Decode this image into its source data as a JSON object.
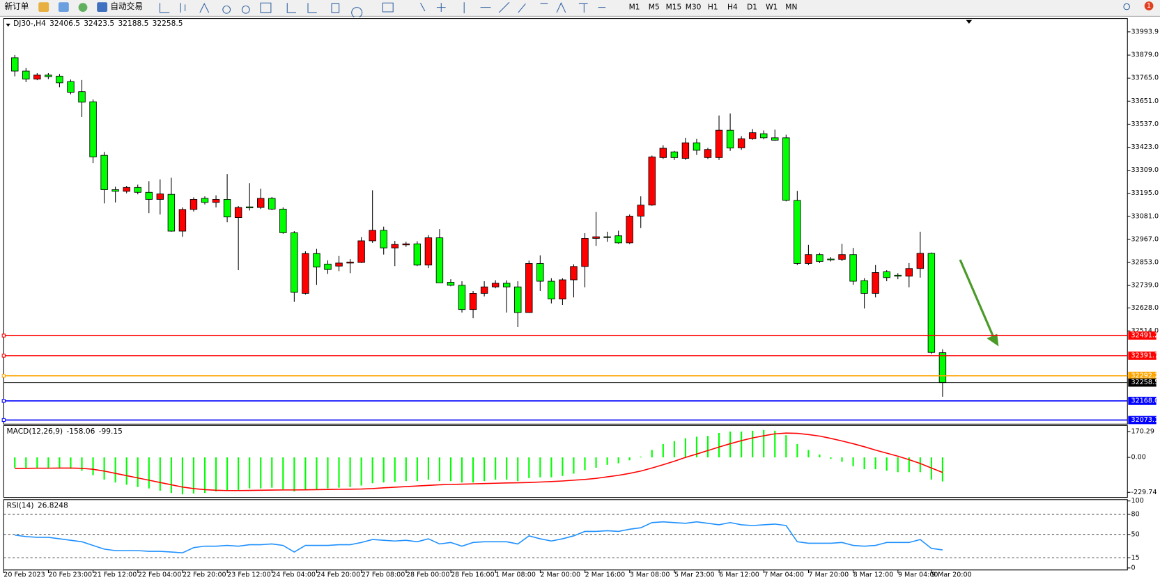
{
  "toolbar": {
    "new_order": "新订单",
    "auto_trading": "自动交易",
    "timeframes": [
      "M1",
      "M5",
      "M15",
      "M30",
      "H1",
      "H4",
      "D1",
      "W1",
      "MN"
    ],
    "alerts_badge": 1
  },
  "chart_data": [
    {
      "type": "candlestick",
      "title": "DJ30-,H4",
      "categories": [
        "20 Feb 2023",
        null,
        null,
        null,
        "20 Feb 23:00",
        null,
        null,
        null,
        "21 Feb 12:00",
        null,
        null,
        null,
        "22 Feb 04:00",
        null,
        null,
        null,
        "22 Feb 20:00",
        null,
        null,
        null,
        "23 Feb 12:00",
        null,
        null,
        null,
        "24 Feb 04:00",
        null,
        null,
        null,
        "24 Feb 20:00",
        null,
        null,
        null,
        "27 Feb 08:00",
        null,
        null,
        null,
        "28 Feb 00:00",
        null,
        null,
        null,
        "28 Feb 16:00",
        null,
        null,
        null,
        "1 Mar 08:00",
        null,
        null,
        null,
        "2 Mar 00:00",
        null,
        null,
        null,
        "2 Mar 16:00",
        null,
        null,
        null,
        "3 Mar 08:00",
        null,
        null,
        null,
        "5 Mar 23:00",
        null,
        null,
        null,
        "6 Mar 12:00",
        null,
        null,
        null,
        "7 Mar 04:00",
        null,
        null,
        null,
        "7 Mar 20:00",
        null,
        null,
        null,
        "8 Mar 12:00",
        null,
        null,
        null,
        "9 Mar 04:00",
        null,
        null,
        "9 Mar 20:00"
      ],
      "open": [
        33866,
        33800,
        33760,
        33780,
        33775,
        33748,
        33698,
        33648,
        33383,
        33213,
        33205,
        33224,
        33200,
        33165,
        33190,
        33008,
        33115,
        33170,
        33150,
        33165,
        33075,
        33128,
        33125,
        33170,
        33117,
        33000,
        32700,
        32897,
        32845,
        32835,
        32850,
        32853,
        32960,
        33012,
        32925,
        32940,
        32945,
        32840,
        32975,
        32755,
        32740,
        32620,
        32700,
        32732,
        32750,
        32732,
        32605,
        32848,
        32760,
        32672,
        32767,
        32833,
        32972,
        32980,
        32985,
        32950,
        33082,
        33137,
        33372,
        33400,
        33368,
        33445,
        33372,
        33372,
        33507,
        33420,
        33465,
        33490,
        33470,
        33470,
        33160,
        32848,
        32892,
        32870,
        32868,
        32892,
        32763,
        32700,
        32807,
        32790,
        32785,
        32823,
        32898,
        32406.5
      ],
      "high": [
        33880,
        33815,
        33790,
        33790,
        33785,
        33758,
        33756,
        33660,
        33400,
        33228,
        33232,
        33238,
        33255,
        33264,
        33272,
        33125,
        33175,
        33180,
        33185,
        33290,
        33132,
        33245,
        33218,
        33177,
        33125,
        33008,
        32908,
        32920,
        32863,
        32885,
        32870,
        32978,
        33210,
        33030,
        32960,
        32955,
        32958,
        32988,
        33018,
        32770,
        32760,
        32712,
        32760,
        32765,
        32765,
        32760,
        32862,
        32888,
        32775,
        32775,
        32844,
        32998,
        33103,
        33005,
        33010,
        33090,
        33180,
        33382,
        33433,
        33405,
        33470,
        33464,
        33420,
        33580,
        33590,
        33478,
        33513,
        33506,
        33510,
        33485,
        33207,
        32940,
        32900,
        32880,
        32945,
        32925,
        32775,
        32840,
        32815,
        32800,
        32850,
        33005,
        32902,
        32423.5
      ],
      "low": [
        33774,
        33745,
        33755,
        33760,
        33720,
        33685,
        33573,
        33345,
        33145,
        33150,
        33195,
        33190,
        33097,
        33090,
        33005,
        32980,
        33105,
        33140,
        33125,
        33052,
        32815,
        33110,
        33117,
        33112,
        32995,
        32658,
        32694,
        32742,
        32796,
        32810,
        32800,
        32850,
        32950,
        32892,
        32835,
        32930,
        32835,
        32825,
        32752,
        32735,
        32605,
        32577,
        32685,
        32725,
        32605,
        32533,
        32603,
        32712,
        32650,
        32643,
        32680,
        32730,
        32935,
        32955,
        32945,
        32944,
        33023,
        33133,
        33365,
        33360,
        33360,
        33385,
        33365,
        33360,
        33405,
        33410,
        33460,
        33462,
        33455,
        33155,
        32840,
        32840,
        32850,
        32858,
        32860,
        32742,
        32625,
        32680,
        32760,
        32770,
        32730,
        32778,
        32400,
        32188.5
      ],
      "close": [
        33800,
        33760,
        33780,
        33772,
        33742,
        33695,
        33646,
        33375,
        33213,
        33205,
        33224,
        33200,
        33165,
        33192,
        33008,
        33115,
        33165,
        33150,
        33165,
        33078,
        33125,
        33123,
        33170,
        33117,
        33000,
        32705,
        32897,
        32830,
        32818,
        32850,
        32855,
        32960,
        33012,
        32925,
        32942,
        32945,
        32840,
        32975,
        32752,
        32740,
        32620,
        32700,
        32732,
        32750,
        32732,
        32605,
        32848,
        32760,
        32672,
        32767,
        32833,
        32972,
        32980,
        32978,
        32950,
        33082,
        33137,
        33375,
        33418,
        33372,
        33445,
        33408,
        33412,
        33507,
        33419,
        33465,
        33495,
        33470,
        33458,
        33160,
        32848,
        32892,
        32858,
        32865,
        32892,
        32760,
        32700,
        32803,
        32778,
        32785,
        32823,
        32898,
        32408,
        32258.5
      ],
      "up_color": "#ff0000",
      "down_color": "#00ff00",
      "ylim": [
        32053,
        34060
      ],
      "yticks": [
        33993.9,
        {
          "value": 33879,
          "label": "33879.0"
        },
        {
          "value": 33765,
          "label": "33765.0"
        },
        {
          "value": 33651,
          "label": "33651.0"
        },
        {
          "value": 33537,
          "label": "33537.0"
        },
        {
          "value": 33423,
          "label": "33423.0"
        },
        {
          "value": 33309,
          "label": "33309.0"
        },
        {
          "value": 33195,
          "label": "33195.0"
        },
        {
          "value": 33081,
          "label": "33081.0"
        },
        {
          "value": 32967,
          "label": "32967.0"
        },
        {
          "value": 32853,
          "label": "32853.0"
        },
        {
          "value": 32739,
          "label": "32739.0"
        },
        {
          "value": 32628,
          "label": "32628.0"
        },
        {
          "value": 32514,
          "label": "32514.0"
        }
      ],
      "price_lines": [
        {
          "value": 32491.2,
          "color": "#ff0000"
        },
        {
          "value": 32391.7,
          "color": "#ff0000"
        },
        {
          "value": 32292.2,
          "color": "#ffa500"
        },
        {
          "value": 32168,
          "label": "32168.0",
          "color": "#0000ff"
        },
        {
          "value": 32073.1,
          "color": "#0000ff"
        }
      ],
      "current_price_color": "#000000"
    },
    {
      "type": "macd",
      "title": "MACD(12,26,9)",
      "values": [
        -68,
        -70,
        -72,
        -70,
        -72,
        -75,
        -88,
        -117,
        -146,
        -165,
        -180,
        -195,
        -204,
        -219,
        -234,
        -243,
        -238,
        -234,
        -224,
        -219,
        -214,
        -204,
        -204,
        -199,
        -209,
        -224,
        -214,
        -209,
        -204,
        -199,
        -195,
        -185,
        -170,
        -165,
        -161,
        -156,
        -156,
        -146,
        -156,
        -156,
        -165,
        -165,
        -156,
        -146,
        -146,
        -156,
        -136,
        -131,
        -131,
        -122,
        -107,
        -83,
        -68,
        -49,
        -39,
        -19,
        5,
        49,
        88,
        107,
        126,
        136,
        141,
        161,
        170,
        170,
        175,
        180,
        175,
        146,
        88,
        49,
        19,
        -10,
        -29,
        -58,
        -78,
        -78,
        -88,
        -97,
        -97,
        -97,
        -146,
        -158.06
      ],
      "signal": [
        -73,
        -72,
        -71,
        -71,
        -70,
        -70,
        -72,
        -78,
        -90,
        -105,
        -120,
        -135,
        -150,
        -165,
        -180,
        -195,
        -205,
        -212,
        -216,
        -218,
        -218,
        -217,
        -216,
        -215,
        -214,
        -214,
        -213,
        -212,
        -211,
        -210,
        -209,
        -208,
        -205,
        -200,
        -196,
        -192,
        -188,
        -184,
        -180,
        -178,
        -176,
        -174,
        -172,
        -170,
        -168,
        -167,
        -165,
        -162,
        -159,
        -155,
        -150,
        -145,
        -138,
        -128,
        -118,
        -105,
        -90,
        -70,
        -48,
        -25,
        0,
        22,
        45,
        68,
        90,
        110,
        128,
        142,
        155,
        160,
        158,
        150,
        140,
        125,
        108,
        90,
        70,
        48,
        28,
        8,
        -15,
        -40,
        -70,
        -99.15
      ],
      "color": "#00ff00",
      "signal_color": "#ff0000",
      "ylim": [
        -263,
        209
      ],
      "yticks": [
        170.29,
        {
          "value": 0,
          "label": "0.00"
        },
        -229.74
      ]
    },
    {
      "type": "line",
      "title": "RSI(14)",
      "values": [
        49.0,
        46.8,
        45.7,
        45.7,
        43.5,
        41.3,
        39.1,
        33.6,
        28.1,
        25.9,
        25.9,
        25.9,
        24.8,
        24.8,
        23.7,
        22.6,
        30.3,
        32.5,
        32.5,
        33.6,
        32.5,
        34.7,
        34.7,
        35.8,
        33.6,
        23.7,
        33.6,
        33.6,
        33.6,
        34.7,
        34.7,
        38.0,
        42.4,
        41.3,
        40.2,
        41.3,
        39.1,
        43.5,
        35.8,
        38.0,
        32.5,
        38.0,
        39.1,
        39.1,
        39.1,
        35.8,
        47.9,
        43.5,
        40.2,
        43.5,
        47.9,
        54.5,
        54.5,
        55.6,
        54.5,
        57.8,
        60.0,
        67.7,
        68.8,
        67.7,
        66.6,
        68.8,
        66.6,
        64.4,
        67.7,
        64.4,
        63.3,
        64.4,
        65.5,
        63.3,
        39.1,
        36.9,
        36.9,
        36.9,
        38.0,
        33.6,
        32.5,
        33.6,
        38.0,
        38.0,
        38.0,
        42.4,
        29.2,
        26.8248
      ],
      "color": "#1e90ff",
      "ylim": [
        -3,
        102
      ],
      "yticks": [
        100,
        80,
        50,
        15,
        0
      ],
      "levels": [
        80,
        50,
        15
      ]
    }
  ]
}
